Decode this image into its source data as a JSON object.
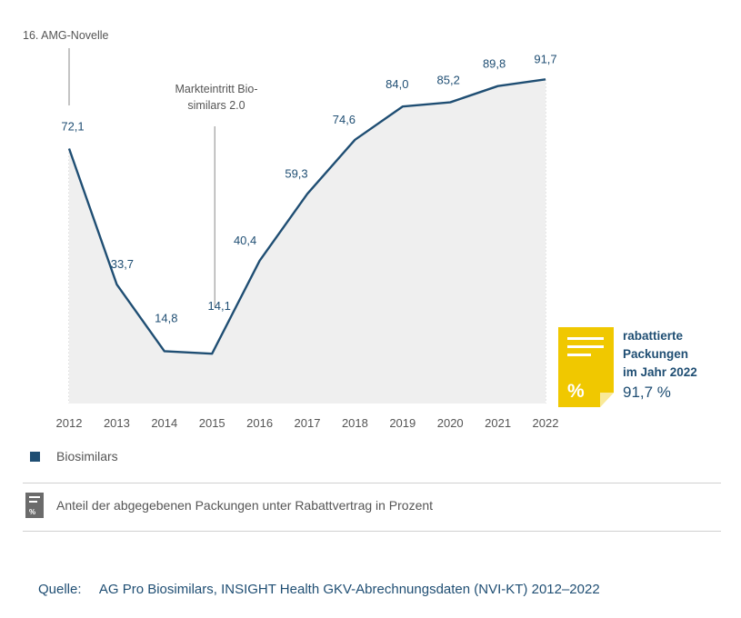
{
  "chart_data": {
    "type": "area",
    "categories": [
      "2012",
      "2013",
      "2014",
      "2015",
      "2016",
      "2017",
      "2018",
      "2019",
      "2020",
      "2021",
      "2022"
    ],
    "series": [
      {
        "name": "Biosimilars",
        "values": [
          72.1,
          33.7,
          14.8,
          14.1,
          40.4,
          59.3,
          74.6,
          84.0,
          85.2,
          89.8,
          91.7
        ],
        "value_labels": [
          "72,1",
          "33,7",
          "14,8",
          "14,1",
          "40,4",
          "59,3",
          "74,6",
          "84,0",
          "85,2",
          "89,8",
          "91,7"
        ],
        "color": "#1f4e73"
      }
    ],
    "ylim": [
      0,
      100
    ],
    "fill_color": "#efefef",
    "grid": "vertical dotted",
    "annotations": [
      {
        "text": "16. AMG-Novelle",
        "x": "2012"
      },
      {
        "text": "Markteintritt Bio-similars 2.0",
        "lines": [
          "Markteintritt Bio-",
          "similars 2.0"
        ],
        "x": "2015"
      }
    ]
  },
  "badge": {
    "icon": "percent-document-icon",
    "icon_color": "#f0c800",
    "icon_symbol": "%",
    "lines": [
      "rabattierte",
      "Packungen",
      "im Jahr 2022"
    ],
    "value": "91,7 %"
  },
  "legend": {
    "label": "Biosimilars",
    "color": "#1f4e73"
  },
  "note": {
    "icon": "percent-document-icon",
    "icon_symbol": "%",
    "text": "Anteil der abgegebenen Packungen unter Rabattvertrag in Prozent"
  },
  "source": {
    "label": "Quelle:",
    "text": "AG Pro Biosimilars, INSIGHT Health GKV-Abrechnungsdaten (NVI-KT) 2012–2022"
  }
}
